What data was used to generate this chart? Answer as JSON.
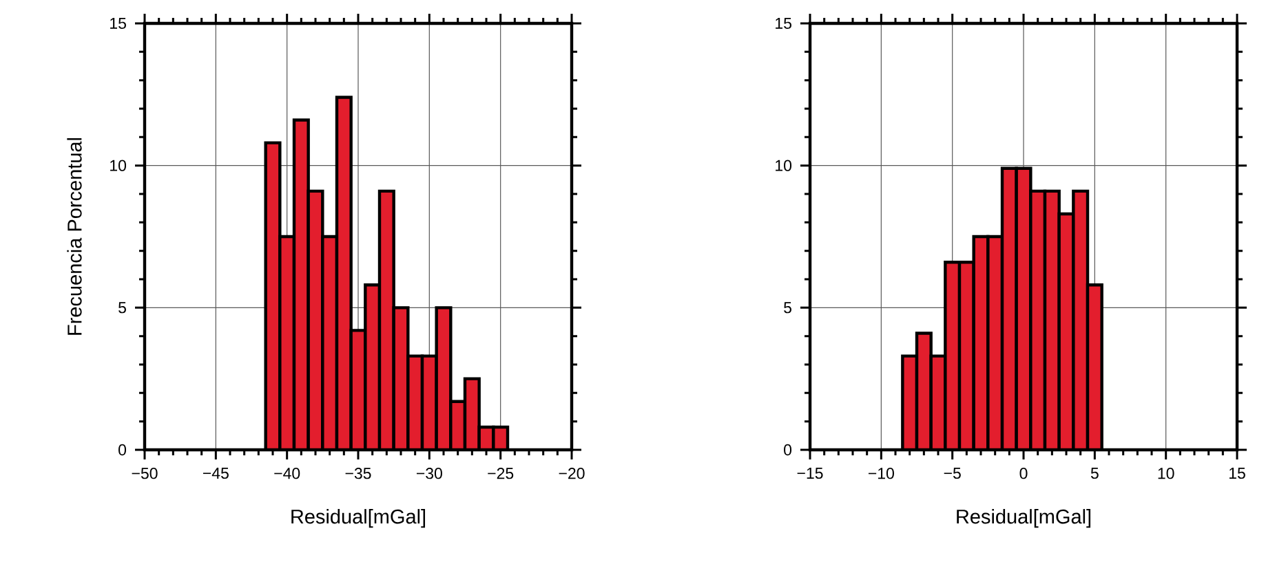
{
  "chart_data": [
    {
      "type": "histogram",
      "xlabel": "Residual[mGal]",
      "ylabel": "Frecuencia Porcentual",
      "color": "#e31e2d",
      "bins": [
        -41.5,
        -40.5,
        -39.5,
        -38.5,
        -37.5,
        -36.5,
        -35.5,
        -34.5,
        -33.5,
        -32.5,
        -31.5,
        -30.5,
        -29.5,
        -28.5,
        -27.5,
        -26.5,
        -25.5,
        -24.5
      ],
      "values": [
        10.8,
        7.5,
        11.6,
        9.1,
        7.5,
        12.4,
        4.2,
        5.8,
        9.1,
        5.0,
        3.3,
        3.3,
        5.0,
        1.7,
        2.5,
        0.8,
        0.8
      ],
      "xlim": [
        -50,
        -20
      ],
      "ylim": [
        0,
        15
      ],
      "xticks": [
        {
          "value": -50,
          "label": "−50"
        },
        {
          "value": -45,
          "label": "−45"
        },
        {
          "value": -40,
          "label": "−40"
        },
        {
          "value": -35,
          "label": "−35"
        },
        {
          "value": -30,
          "label": "−30"
        },
        {
          "value": -25,
          "label": "−25"
        },
        {
          "value": -20,
          "label": "−20"
        }
      ],
      "yticks": [
        0,
        5,
        10,
        15
      ],
      "grid": true
    },
    {
      "type": "histogram",
      "xlabel": "Residual[mGal]",
      "color": "#e31e2d",
      "bins": [
        -8.5,
        -7.5,
        -6.5,
        -5.5,
        -4.5,
        -3.5,
        -2.5,
        -1.5,
        -0.5,
        0.5,
        1.5,
        2.5,
        3.5,
        4.5,
        5.5
      ],
      "values": [
        3.3,
        4.1,
        3.3,
        6.6,
        6.6,
        7.5,
        7.5,
        9.9,
        9.9,
        9.1,
        9.1,
        8.3,
        9.1,
        5.8
      ],
      "xlim": [
        -15,
        15
      ],
      "ylim": [
        0,
        15
      ],
      "xticks": [
        {
          "value": -15,
          "label": "−15"
        },
        {
          "value": -10,
          "label": "−10"
        },
        {
          "value": -5,
          "label": "−5"
        },
        0,
        5,
        10,
        15
      ],
      "yticks": [
        0,
        5,
        10,
        15
      ],
      "grid": true
    }
  ]
}
